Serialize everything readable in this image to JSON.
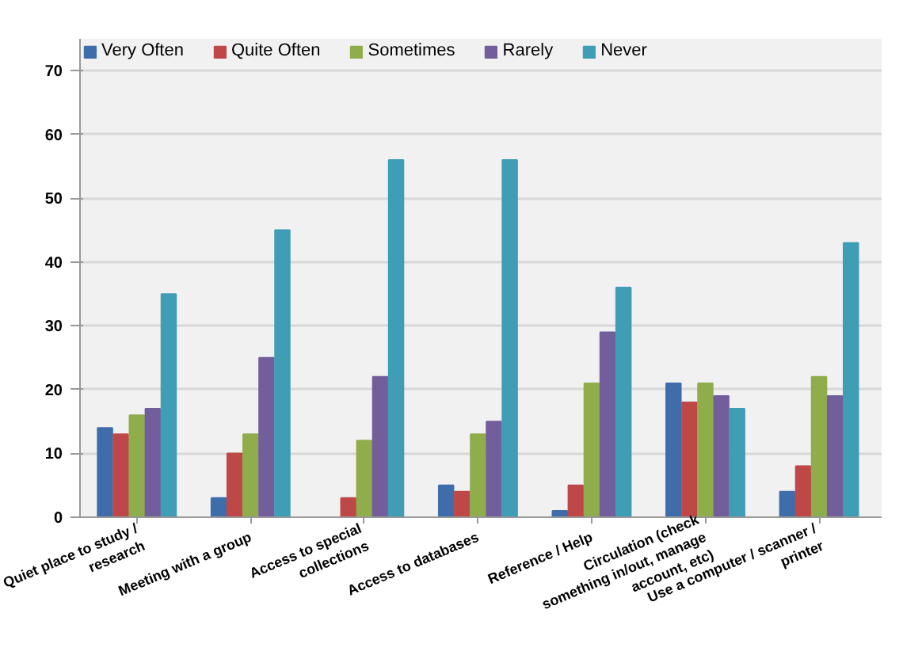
{
  "chart_data": {
    "type": "bar",
    "categories": [
      "Quiet place to study / research",
      "Meeting with a group",
      "Access to special collections",
      "Access to databases",
      "Reference / Help",
      "Circulation (check something in/out, manage account, etc)",
      "Use a computer / scanner / printer"
    ],
    "series": [
      {
        "name": "Very Often",
        "color": "#3f6daa",
        "values": [
          14,
          3,
          0,
          5,
          1,
          21,
          4
        ]
      },
      {
        "name": "Quite Often",
        "color": "#be4848",
        "values": [
          13,
          10,
          3,
          4,
          5,
          18,
          8
        ]
      },
      {
        "name": "Sometimes",
        "color": "#8fad4b",
        "values": [
          16,
          13,
          12,
          13,
          21,
          21,
          22
        ]
      },
      {
        "name": "Rarely",
        "color": "#735e9c",
        "values": [
          17,
          25,
          22,
          15,
          29,
          19,
          19
        ]
      },
      {
        "name": "Never",
        "color": "#3f9db6",
        "values": [
          35,
          45,
          56,
          56,
          36,
          17,
          43
        ]
      }
    ],
    "ylim": [
      0,
      75
    ],
    "yticks": [
      0,
      10,
      20,
      30,
      40,
      50,
      60,
      70
    ],
    "grid": "y",
    "legend": "top left"
  }
}
